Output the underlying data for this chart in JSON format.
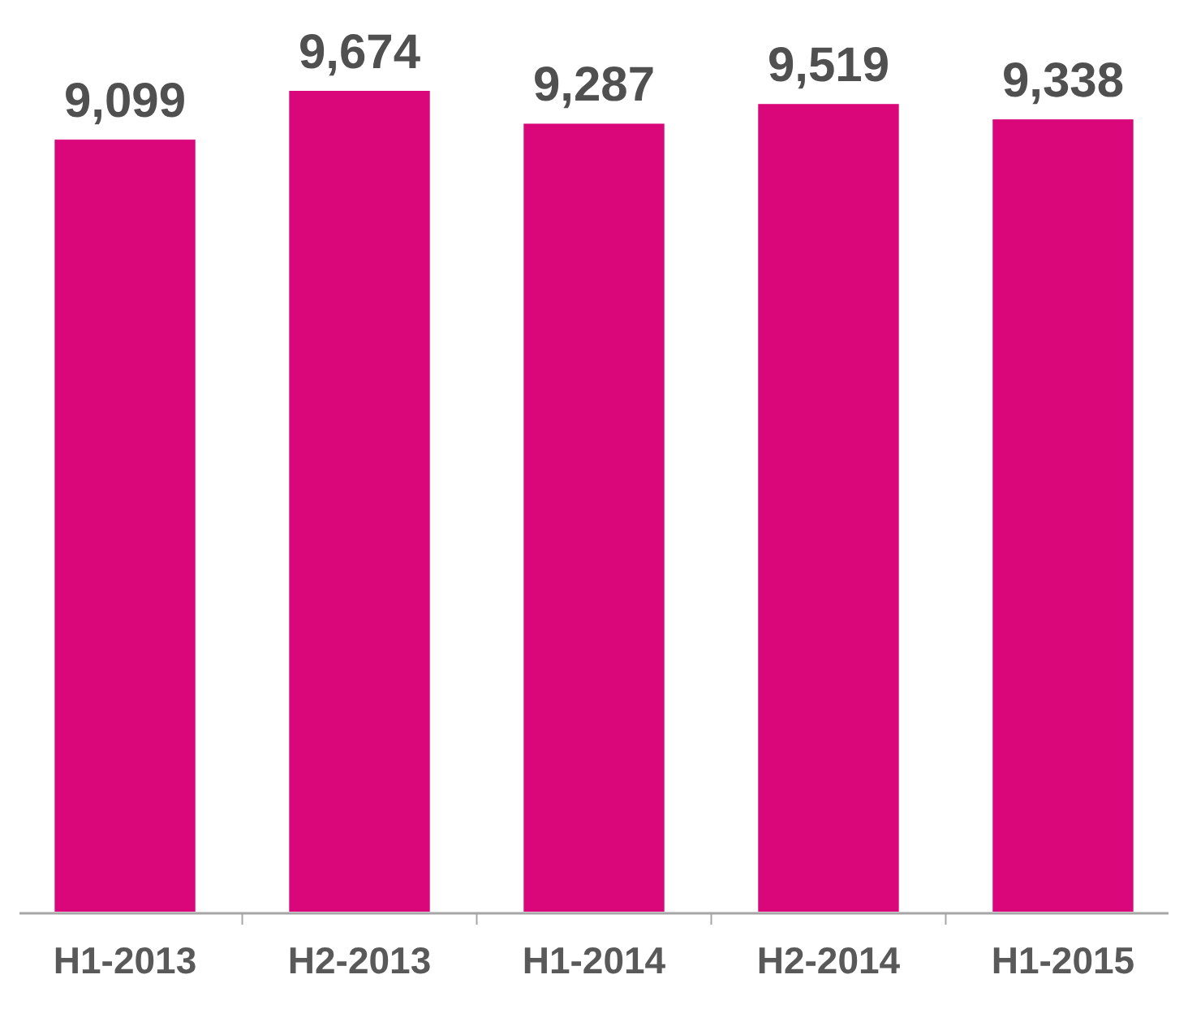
{
  "chart_data": {
    "type": "bar",
    "categories": [
      "H1-2013",
      "H2-2013",
      "H1-2014",
      "H2-2014",
      "H1-2015"
    ],
    "values": [
      9099,
      9674,
      9287,
      9519,
      9338
    ],
    "value_labels": [
      "9,099",
      "9,674",
      "9,287",
      "9,519",
      "9,338"
    ],
    "color": "#d9077a"
  }
}
